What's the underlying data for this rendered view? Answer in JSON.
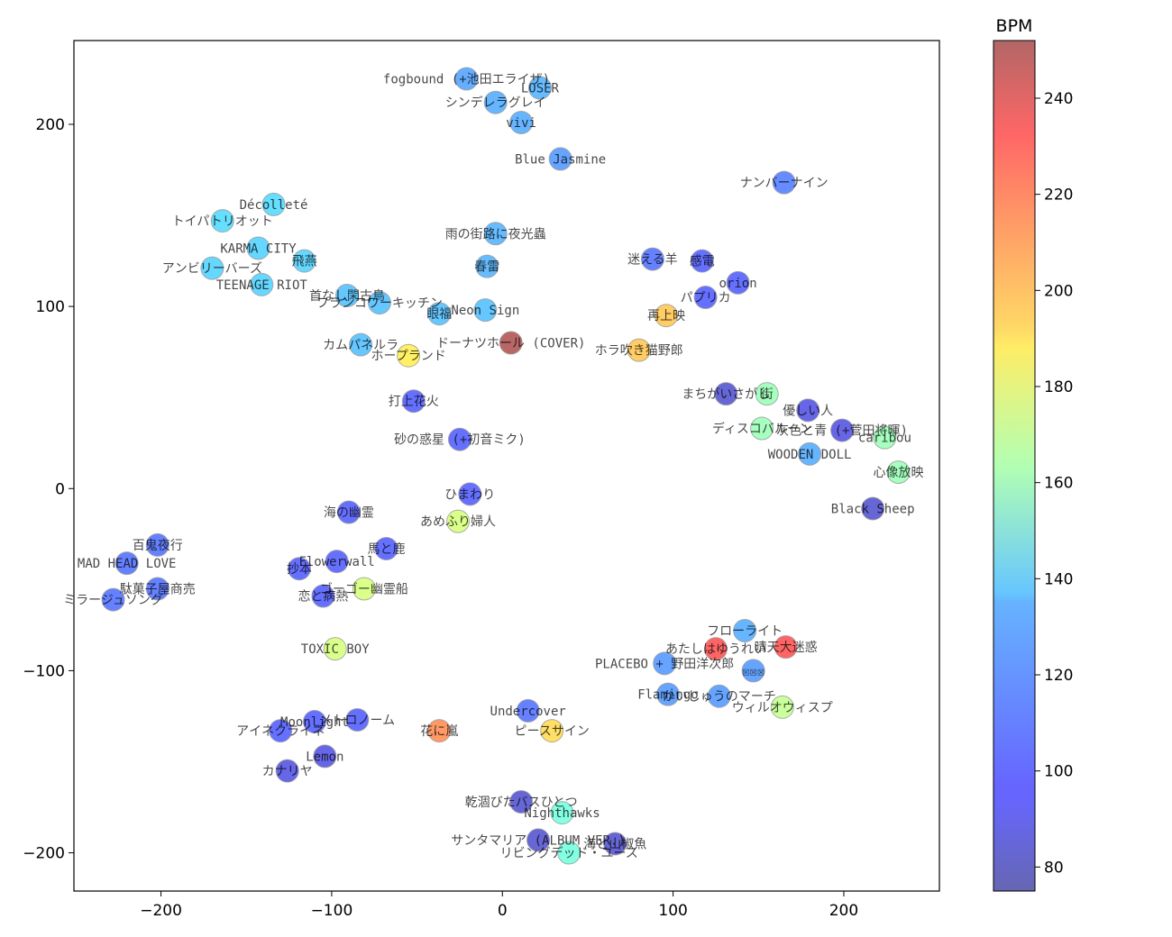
{
  "chart_data": {
    "type": "scatter",
    "title": "",
    "xlabel": "",
    "ylabel": "",
    "xlim": [
      -251,
      256
    ],
    "ylim": [
      -221,
      246
    ],
    "xticks": [
      -200,
      -100,
      0,
      100,
      200
    ],
    "yticks": [
      -200,
      -100,
      0,
      100,
      200
    ],
    "grid": false,
    "colorbar": {
      "label": "BPM",
      "colormap": "jet",
      "alpha": 0.6,
      "range": [
        75,
        252
      ],
      "ticks": [
        80,
        100,
        120,
        140,
        160,
        180,
        200,
        220,
        240
      ],
      "placement": "right"
    },
    "points": [
      {
        "label": "fogbound (+池田エライザ)",
        "x": -21,
        "y": 225,
        "bpm": 118
      },
      {
        "label": "LOSER",
        "x": 22,
        "y": 220,
        "bpm": 122
      },
      {
        "label": "シンデレラグレイ",
        "x": -4,
        "y": 212,
        "bpm": 120
      },
      {
        "label": "vivi",
        "x": 11,
        "y": 201,
        "bpm": 120
      },
      {
        "label": "Blue Jasmine",
        "x": 34,
        "y": 181,
        "bpm": 115
      },
      {
        "label": "ナンバーナイン",
        "x": 165,
        "y": 168,
        "bpm": 108
      },
      {
        "label": "Décolleté",
        "x": -134,
        "y": 156,
        "bpm": 132
      },
      {
        "label": "トイパトリオット",
        "x": -164,
        "y": 147,
        "bpm": 132
      },
      {
        "label": "KARMA CITY",
        "x": -143,
        "y": 132,
        "bpm": 130
      },
      {
        "label": "飛燕",
        "x": -116,
        "y": 125,
        "bpm": 130
      },
      {
        "label": "アンビリーバーズ",
        "x": -170,
        "y": 121,
        "bpm": 130
      },
      {
        "label": "TEENAGE RIOT",
        "x": -141,
        "y": 112,
        "bpm": 130
      },
      {
        "label": "雨の街路に夜光蟲",
        "x": -4,
        "y": 140,
        "bpm": 122
      },
      {
        "label": "春雷",
        "x": -9,
        "y": 122,
        "bpm": 122
      },
      {
        "label": "迷える羊",
        "x": 88,
        "y": 126,
        "bpm": 105
      },
      {
        "label": "感電",
        "x": 117,
        "y": 125,
        "bpm": 100
      },
      {
        "label": "orion",
        "x": 138,
        "y": 113,
        "bpm": 100
      },
      {
        "label": "パプリカ",
        "x": 119,
        "y": 105,
        "bpm": 100
      },
      {
        "label": "首なし閑古鳥",
        "x": -91,
        "y": 106,
        "bpm": 125
      },
      {
        "label": "フランコワーキッチン",
        "x": -72,
        "y": 102,
        "bpm": 125
      },
      {
        "label": "眼福",
        "x": -37,
        "y": 96,
        "bpm": 125
      },
      {
        "label": "Neon Sign",
        "x": -10,
        "y": 98,
        "bpm": 125
      },
      {
        "label": "再上映",
        "x": 96,
        "y": 95,
        "bpm": 200
      },
      {
        "label": "カムパネルラ",
        "x": -83,
        "y": 79,
        "bpm": 125
      },
      {
        "label": "ホープランド",
        "x": -55,
        "y": 73,
        "bpm": 190
      },
      {
        "label": "ドーナツホール (COVER)",
        "x": 5,
        "y": 80,
        "bpm": 250
      },
      {
        "label": "ホラ吹き猫野郎",
        "x": 80,
        "y": 76,
        "bpm": 200
      },
      {
        "label": "打上花火",
        "x": -52,
        "y": 48,
        "bpm": 100
      },
      {
        "label": "砂の惑星 (+初音ミク)",
        "x": -25,
        "y": 27,
        "bpm": 100
      },
      {
        "label": "まちがいさがし",
        "x": 131,
        "y": 52,
        "bpm": 85
      },
      {
        "label": "街",
        "x": 155,
        "y": 52,
        "bpm": 160
      },
      {
        "label": "優しい人",
        "x": 179,
        "y": 43,
        "bpm": 90
      },
      {
        "label": "ディスコバルーン",
        "x": 152,
        "y": 33,
        "bpm": 160
      },
      {
        "label": "灰色と青 (+菅田将暉)",
        "x": 199,
        "y": 32,
        "bpm": 90
      },
      {
        "label": "caribou",
        "x": 224,
        "y": 28,
        "bpm": 160
      },
      {
        "label": "WOODEN DOLL",
        "x": 180,
        "y": 19,
        "bpm": 120
      },
      {
        "label": "心像放映",
        "x": 232,
        "y": 9,
        "bpm": 160
      },
      {
        "label": "Black Sheep",
        "x": 217,
        "y": -11,
        "bpm": 85
      },
      {
        "label": "ひまわり",
        "x": -19,
        "y": -3,
        "bpm": 100
      },
      {
        "label": "あめふり婦人",
        "x": -26,
        "y": -18,
        "bpm": 175
      },
      {
        "label": "海の幽霊",
        "x": -90,
        "y": -13,
        "bpm": 100
      },
      {
        "label": "百鬼夜行",
        "x": -202,
        "y": -31,
        "bpm": 105
      },
      {
        "label": "MAD HEAD LOVE",
        "x": -220,
        "y": -41,
        "bpm": 105
      },
      {
        "label": "馬と鹿",
        "x": -68,
        "y": -33,
        "bpm": 100
      },
      {
        "label": "抄本",
        "x": -119,
        "y": -44,
        "bpm": 100
      },
      {
        "label": "Flowerwall",
        "x": -97,
        "y": -40,
        "bpm": 100
      },
      {
        "label": "駄菓子屋商売",
        "x": -202,
        "y": -55,
        "bpm": 105
      },
      {
        "label": "ミラージュソング",
        "x": -228,
        "y": -61,
        "bpm": 105
      },
      {
        "label": "ゴーゴー幽霊船",
        "x": -81,
        "y": -55,
        "bpm": 175
      },
      {
        "label": "恋と病熱",
        "x": -105,
        "y": -59,
        "bpm": 100
      },
      {
        "label": "TOXIC BOY",
        "x": -98,
        "y": -88,
        "bpm": 175
      },
      {
        "label": "フローライト",
        "x": 142,
        "y": -78,
        "bpm": 120
      },
      {
        "label": "あたしはゆうれい",
        "x": 125,
        "y": -88,
        "bpm": 230
      },
      {
        "label": "晴天大迷惑",
        "x": 166,
        "y": -87,
        "bpm": 230
      },
      {
        "label": "PLACEBO + 野田洋次郎",
        "x": 95,
        "y": -96,
        "bpm": 115
      },
      {
        "label": "☒☒☒",
        "x": 147,
        "y": -100,
        "bpm": 115
      },
      {
        "label": "Flamingo",
        "x": 97,
        "y": -113,
        "bpm": 115
      },
      {
        "label": "かいじゅうのマーチ",
        "x": 127,
        "y": -114,
        "bpm": 115
      },
      {
        "label": "ウィルオウィスプ",
        "x": 164,
        "y": -120,
        "bpm": 170
      },
      {
        "label": "Undercover",
        "x": 15,
        "y": -122,
        "bpm": 105
      },
      {
        "label": "ピースサイン",
        "x": 29,
        "y": -133,
        "bpm": 195
      },
      {
        "label": "花に嵐",
        "x": -37,
        "y": -133,
        "bpm": 215
      },
      {
        "label": "アイネクライネ",
        "x": -130,
        "y": -133,
        "bpm": 100
      },
      {
        "label": "Moonlight",
        "x": -110,
        "y": -128,
        "bpm": 100
      },
      {
        "label": "メトロノーム",
        "x": -85,
        "y": -127,
        "bpm": 100
      },
      {
        "label": "Lemon",
        "x": -104,
        "y": -147,
        "bpm": 90
      },
      {
        "label": "カナリヤ",
        "x": -126,
        "y": -155,
        "bpm": 90
      },
      {
        "label": "乾涸びたバスひとつ",
        "x": 11,
        "y": -172,
        "bpm": 85
      },
      {
        "label": "Nighthawks",
        "x": 35,
        "y": -178,
        "bpm": 150
      },
      {
        "label": "サンタマリア (ALBUM VER.)",
        "x": 21,
        "y": -193,
        "bpm": 85
      },
      {
        "label": "海と山椒魚",
        "x": 66,
        "y": -195,
        "bpm": 85
      },
      {
        "label": "リビングデッド・ユース",
        "x": 39,
        "y": -200,
        "bpm": 150
      }
    ]
  }
}
